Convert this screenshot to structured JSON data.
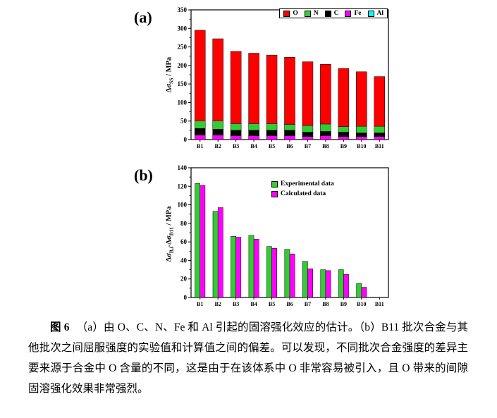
{
  "charts": [
    {
      "panel_label": "(a)",
      "type": "stacked_bar",
      "ylabel": {
        "pre": "Δσ",
        "sub": "SS",
        "post": " / MPa"
      },
      "ylim": [
        0,
        350
      ],
      "ytick_step": 50,
      "grid": false,
      "legend": {
        "position": "top",
        "bordered": true
      },
      "categories": [
        "B1",
        "B2",
        "B3",
        "B4",
        "B5",
        "B6",
        "B7",
        "B8",
        "B9",
        "B10",
        "B11"
      ],
      "series": [
        {
          "name": "O",
          "color": "#ff0000",
          "values": [
            245,
            222,
            195,
            190,
            185,
            181,
            172,
            161,
            157,
            147,
            134
          ]
        },
        {
          "name": "N",
          "color": "#33cc33",
          "values": [
            20,
            22,
            18,
            18,
            18,
            16,
            18,
            20,
            15,
            18,
            18
          ]
        },
        {
          "name": "C",
          "color": "#000000",
          "values": [
            18,
            16,
            15,
            15,
            15,
            15,
            12,
            12,
            12,
            10,
            10
          ]
        },
        {
          "name": "Fe",
          "color": "#ff00ff",
          "values": [
            12,
            12,
            10,
            10,
            10,
            10,
            8,
            10,
            8,
            8,
            8
          ]
        },
        {
          "name": "Al",
          "color": "#00ffff",
          "values": [
            0,
            0,
            0,
            0,
            0,
            0,
            0,
            0,
            0,
            0,
            0
          ]
        }
      ],
      "stack_order": [
        "Fe",
        "C",
        "N",
        "O",
        "Al"
      ],
      "totals": [
        295,
        272,
        238,
        233,
        228,
        222,
        210,
        203,
        192,
        183,
        170
      ]
    },
    {
      "panel_label": "(b)",
      "type": "grouped_bar",
      "ylabel": {
        "pre": "Δσ",
        "sub": "B,i",
        "mid": "-Δσ",
        "sub2": "B11",
        "post": " / MPa"
      },
      "ylim": [
        0,
        140
      ],
      "ytick_step": 20,
      "grid": false,
      "legend": {
        "position": "inner-right",
        "bordered": false
      },
      "categories": [
        "B1",
        "B2",
        "B3",
        "B4",
        "B5",
        "B6",
        "B7",
        "B8",
        "B9",
        "B10",
        "B11"
      ],
      "series": [
        {
          "name": "Experimental data",
          "color": "#33cc33",
          "values": [
            123,
            93,
            66,
            67,
            55,
            52,
            39,
            30,
            30,
            15,
            0
          ]
        },
        {
          "name": "Calculated data",
          "color": "#ff00ff",
          "values": [
            121,
            97,
            65,
            63,
            53,
            47,
            31,
            29,
            25,
            11,
            0
          ]
        }
      ]
    }
  ],
  "chart_data": [
    {
      "type": "bar",
      "subtype": "stacked",
      "title": "",
      "xlabel": "",
      "ylabel": "Δσ_SS / MPa",
      "ylim": [
        0,
        350
      ],
      "categories": [
        "B1",
        "B2",
        "B3",
        "B4",
        "B5",
        "B6",
        "B7",
        "B8",
        "B9",
        "B10",
        "B11"
      ],
      "series": [
        {
          "name": "O",
          "values": [
            245,
            222,
            195,
            190,
            185,
            181,
            172,
            161,
            157,
            147,
            134
          ]
        },
        {
          "name": "N",
          "values": [
            20,
            22,
            18,
            18,
            18,
            16,
            18,
            20,
            15,
            18,
            18
          ]
        },
        {
          "name": "C",
          "values": [
            18,
            16,
            15,
            15,
            15,
            15,
            12,
            12,
            12,
            10,
            10
          ]
        },
        {
          "name": "Fe",
          "values": [
            12,
            12,
            10,
            10,
            10,
            10,
            8,
            10,
            8,
            8,
            8
          ]
        },
        {
          "name": "Al",
          "values": [
            0,
            0,
            0,
            0,
            0,
            0,
            0,
            0,
            0,
            0,
            0
          ]
        }
      ],
      "legend_position": "top"
    },
    {
      "type": "bar",
      "subtype": "grouped",
      "title": "",
      "xlabel": "",
      "ylabel": "Δσ_B,i - Δσ_B11 / MPa",
      "ylim": [
        0,
        140
      ],
      "categories": [
        "B1",
        "B2",
        "B3",
        "B4",
        "B5",
        "B6",
        "B7",
        "B8",
        "B9",
        "B10",
        "B11"
      ],
      "series": [
        {
          "name": "Experimental data",
          "values": [
            123,
            93,
            66,
            67,
            55,
            52,
            39,
            30,
            30,
            15,
            0
          ]
        },
        {
          "name": "Calculated data",
          "values": [
            121,
            97,
            65,
            63,
            53,
            47,
            31,
            29,
            25,
            11,
            0
          ]
        }
      ],
      "legend_position": "inner-right"
    }
  ],
  "caption": {
    "label": "图 6",
    "text": "（a）由 O、C、N、Fe 和 Al 引起的固溶强化效应的估计。（b）B11 批次合金与其他批次之间屈服强度的实验值和计算值之间的偏差。可以发现，不同批次合金强度的差异主要来源于合金中 O 含量的不同，这是由于在该体系中 O 非常容易被引入，且 O 带来的间隙固溶强化效果非常强烈。"
  }
}
